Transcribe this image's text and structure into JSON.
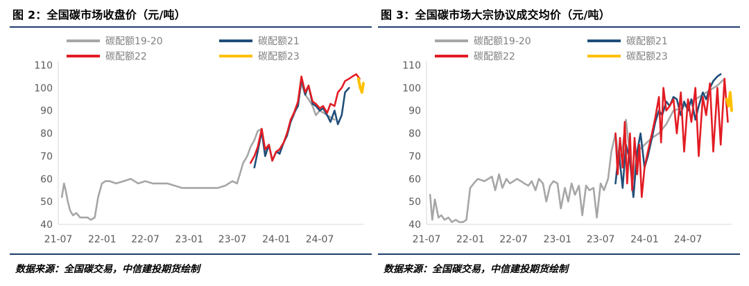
{
  "charts": [
    {
      "title": "图 2：全国碳市场收盘价（元/吨）",
      "source": "数据来源：全国碳交易，中信建投期货绘制",
      "chart_data": {
        "type": "line",
        "xlabel": "",
        "ylabel": "",
        "ylim": [
          40,
          110
        ],
        "yticks": [
          40,
          50,
          60,
          70,
          80,
          90,
          100,
          110
        ],
        "xticks": [
          "21-07",
          "22-01",
          "22-07",
          "23-01",
          "23-07",
          "24-01",
          "24-07"
        ],
        "xlim": [
          "2021-07-01",
          "2024-12-31"
        ],
        "grid": false,
        "legend_position": "top",
        "series": [
          {
            "name": "碳配额19-20",
            "color": "#a6a6a6",
            "x": [
              "2021-07-16",
              "2021-07-25",
              "2021-08-01",
              "2021-08-10",
              "2021-08-20",
              "2021-09-01",
              "2021-09-15",
              "2021-10-01",
              "2021-10-15",
              "2021-11-01",
              "2021-11-15",
              "2021-12-01",
              "2021-12-15",
              "2021-12-31",
              "2022-01-15",
              "2022-02-01",
              "2022-03-01",
              "2022-04-01",
              "2022-05-01",
              "2022-06-01",
              "2022-07-01",
              "2022-08-01",
              "2022-09-01",
              "2022-10-01",
              "2022-11-01",
              "2022-12-01",
              "2023-01-01",
              "2023-02-01",
              "2023-03-01",
              "2023-04-01",
              "2023-05-01",
              "2023-06-01",
              "2023-07-01",
              "2023-07-20",
              "2023-08-01",
              "2023-08-15",
              "2023-09-01",
              "2023-09-15",
              "2023-10-01",
              "2023-10-15",
              "2023-11-01",
              "2023-11-15",
              "2023-12-01",
              "2023-12-15",
              "2024-01-01",
              "2024-01-15",
              "2024-02-01",
              "2024-02-15",
              "2024-03-01",
              "2024-03-15",
              "2024-04-01",
              "2024-04-15",
              "2024-05-01",
              "2024-05-15",
              "2024-06-01",
              "2024-06-15",
              "2024-07-01",
              "2024-08-01",
              "2024-09-01"
            ],
            "y": [
              52,
              58,
              55,
              50,
              46,
              44,
              45,
              43,
              43,
              43,
              42,
              43,
              52,
              58,
              59,
              59,
              58,
              59,
              60,
              58,
              59,
              58,
              58,
              58,
              57,
              56,
              56,
              56,
              56,
              56,
              56,
              57,
              59,
              58,
              62,
              67,
              70,
              74,
              77,
              81,
              82,
              72,
              75,
              68,
              72,
              72,
              76,
              80,
              85,
              88,
              93,
              102,
              97,
              95,
              92,
              88,
              90,
              88,
              86
            ]
          },
          {
            "name": "碳配额21",
            "color": "#1f4e79",
            "x": [
              "2023-10-01",
              "2023-10-15",
              "2023-11-01",
              "2023-11-15",
              "2023-12-01",
              "2023-12-15",
              "2024-01-01",
              "2024-01-15",
              "2024-02-01",
              "2024-02-15",
              "2024-03-01",
              "2024-03-15",
              "2024-04-01",
              "2024-04-15",
              "2024-05-01",
              "2024-05-15",
              "2024-06-01",
              "2024-06-15",
              "2024-07-01",
              "2024-07-15",
              "2024-08-01",
              "2024-08-15",
              "2024-09-01",
              "2024-09-15",
              "2024-10-01",
              "2024-10-15",
              "2024-11-01"
            ],
            "y": [
              65,
              72,
              81,
              70,
              75,
              68,
              72,
              71,
              76,
              79,
              85,
              89,
              92,
              104,
              97,
              101,
              93,
              92,
              90,
              91,
              88,
              85,
              90,
              84,
              88,
              98,
              100
            ]
          },
          {
            "name": "碳配额22",
            "color": "#e21c23",
            "x": [
              "2023-09-15",
              "2023-10-01",
              "2023-10-15",
              "2023-11-01",
              "2023-11-15",
              "2023-12-01",
              "2023-12-15",
              "2024-01-01",
              "2024-01-15",
              "2024-02-01",
              "2024-02-15",
              "2024-03-01",
              "2024-03-15",
              "2024-04-01",
              "2024-04-15",
              "2024-05-01",
              "2024-05-15",
              "2024-06-01",
              "2024-06-15",
              "2024-07-01",
              "2024-07-15",
              "2024-08-01",
              "2024-08-15",
              "2024-09-01",
              "2024-09-15",
              "2024-10-01",
              "2024-10-15",
              "2024-11-01",
              "2024-11-15",
              "2024-12-01",
              "2024-12-15"
            ],
            "y": [
              67,
              70,
              74,
              82,
              73,
              75,
              68,
              72,
              73,
              76,
              80,
              86,
              89,
              94,
              105,
              98,
              101,
              94,
              93,
              91,
              92,
              89,
              93,
              92,
              98,
              100,
              103,
              104,
              105,
              106,
              104
            ]
          },
          {
            "name": "碳配额23",
            "color": "#ffc000",
            "x": [
              "2024-12-10",
              "2024-12-18",
              "2024-12-25",
              "2024-12-31"
            ],
            "y": [
              104,
              100,
              98,
              102
            ]
          }
        ]
      }
    },
    {
      "title": "图 3：全国碳市场大宗协议成交均价（元/吨）",
      "source": "数据来源：全国碳交易，中信建投期货绘制",
      "chart_data": {
        "type": "line",
        "xlabel": "",
        "ylabel": "",
        "ylim": [
          40,
          110
        ],
        "yticks": [
          40,
          50,
          60,
          70,
          80,
          90,
          100,
          110
        ],
        "xticks": [
          "21-07",
          "22-01",
          "22-07",
          "23-01",
          "23-07",
          "24-01",
          "24-07"
        ],
        "xlim": [
          "2021-07-01",
          "2024-12-31"
        ],
        "grid": false,
        "legend_position": "top",
        "series": [
          {
            "name": "碳配额19-20",
            "color": "#a6a6a6",
            "x": [
              "2021-07-16",
              "2021-07-25",
              "2021-08-05",
              "2021-08-20",
              "2021-09-01",
              "2021-09-15",
              "2021-10-01",
              "2021-10-15",
              "2021-11-01",
              "2021-11-15",
              "2021-12-01",
              "2021-12-15",
              "2021-12-31",
              "2022-01-15",
              "2022-02-01",
              "2022-03-01",
              "2022-04-01",
              "2022-04-15",
              "2022-05-01",
              "2022-05-15",
              "2022-06-01",
              "2022-06-15",
              "2022-07-01",
              "2022-07-15",
              "2022-08-01",
              "2022-08-15",
              "2022-09-01",
              "2022-09-15",
              "2022-10-01",
              "2022-10-15",
              "2022-11-01",
              "2022-11-15",
              "2022-12-01",
              "2022-12-15",
              "2023-01-01",
              "2023-01-15",
              "2023-02-01",
              "2023-02-15",
              "2023-03-01",
              "2023-03-15",
              "2023-04-01",
              "2023-04-15",
              "2023-05-01",
              "2023-05-15",
              "2023-06-01",
              "2023-06-15",
              "2023-07-01",
              "2023-07-15",
              "2023-08-01",
              "2023-08-15",
              "2023-09-01",
              "2023-09-15",
              "2023-10-01",
              "2023-10-15",
              "2023-11-01",
              "2023-11-15",
              "2023-12-01",
              "2024-01-01",
              "2024-02-01",
              "2024-03-01",
              "2024-04-01",
              "2024-05-01",
              "2024-06-01",
              "2024-07-01",
              "2024-08-01",
              "2024-09-01",
              "2024-10-01",
              "2024-11-01",
              "2024-12-01"
            ],
            "y": [
              53,
              42,
              51,
              43,
              44,
              42,
              43,
              41,
              42,
              41,
              41,
              42,
              56,
              58,
              60,
              59,
              61,
              55,
              62,
              56,
              60,
              58,
              59,
              60,
              59,
              58,
              57,
              59,
              55,
              60,
              58,
              50,
              57,
              59,
              58,
              47,
              56,
              50,
              58,
              53,
              57,
              44,
              57,
              55,
              56,
              43,
              58,
              55,
              60,
              72,
              80,
              68,
              74,
              86,
              70,
              60,
              72,
              75,
              78,
              80,
              84,
              90,
              91,
              93,
              95,
              97,
              99,
              101,
              104
            ]
          },
          {
            "name": "碳配额21",
            "color": "#1f4e79",
            "x": [
              "2023-09-01",
              "2023-09-15",
              "2023-10-01",
              "2023-10-15",
              "2023-11-01",
              "2023-11-15",
              "2023-12-01",
              "2023-12-15",
              "2024-01-01",
              "2024-01-15",
              "2024-02-01",
              "2024-02-15",
              "2024-03-01",
              "2024-03-15",
              "2024-04-01",
              "2024-04-15",
              "2024-05-01",
              "2024-05-15",
              "2024-06-01",
              "2024-06-15",
              "2024-07-01",
              "2024-07-15",
              "2024-08-01",
              "2024-08-15",
              "2024-09-01",
              "2024-09-15",
              "2024-10-01",
              "2024-10-15",
              "2024-11-01",
              "2024-11-15"
            ],
            "y": [
              58,
              72,
              56,
              75,
              68,
              52,
              72,
              80,
              65,
              70,
              78,
              85,
              90,
              88,
              94,
              92,
              96,
              95,
              88,
              94,
              90,
              95,
              86,
              92,
              98,
              95,
              100,
              103,
              105,
              106
            ]
          },
          {
            "name": "碳配额22",
            "color": "#e21c23",
            "x": [
              "2023-09-01",
              "2023-09-10",
              "2023-09-20",
              "2023-10-01",
              "2023-10-10",
              "2023-10-20",
              "2023-11-01",
              "2023-11-10",
              "2023-11-20",
              "2023-12-01",
              "2023-12-10",
              "2023-12-20",
              "2024-01-01",
              "2024-01-15",
              "2024-02-01",
              "2024-02-15",
              "2024-03-01",
              "2024-03-10",
              "2024-03-20",
              "2024-04-01",
              "2024-04-15",
              "2024-05-01",
              "2024-05-15",
              "2024-06-01",
              "2024-06-15",
              "2024-07-01",
              "2024-07-15",
              "2024-08-01",
              "2024-08-15",
              "2024-09-01",
              "2024-09-15",
              "2024-10-01",
              "2024-10-15",
              "2024-11-01",
              "2024-11-15",
              "2024-12-01",
              "2024-12-15"
            ],
            "y": [
              80,
              62,
              78,
              65,
              85,
              58,
              80,
              55,
              78,
              62,
              75,
              52,
              65,
              72,
              80,
              87,
              96,
              76,
              100,
              90,
              92,
              95,
              80,
              98,
              72,
              95,
              85,
              100,
              70,
              96,
              88,
              102,
              72,
              100,
              75,
              104,
              85
            ]
          },
          {
            "name": "碳配额23",
            "color": "#ffc000",
            "x": [
              "2024-12-10",
              "2024-12-18",
              "2024-12-25",
              "2024-12-31"
            ],
            "y": [
              95,
              92,
              98,
              90
            ]
          }
        ]
      }
    }
  ]
}
